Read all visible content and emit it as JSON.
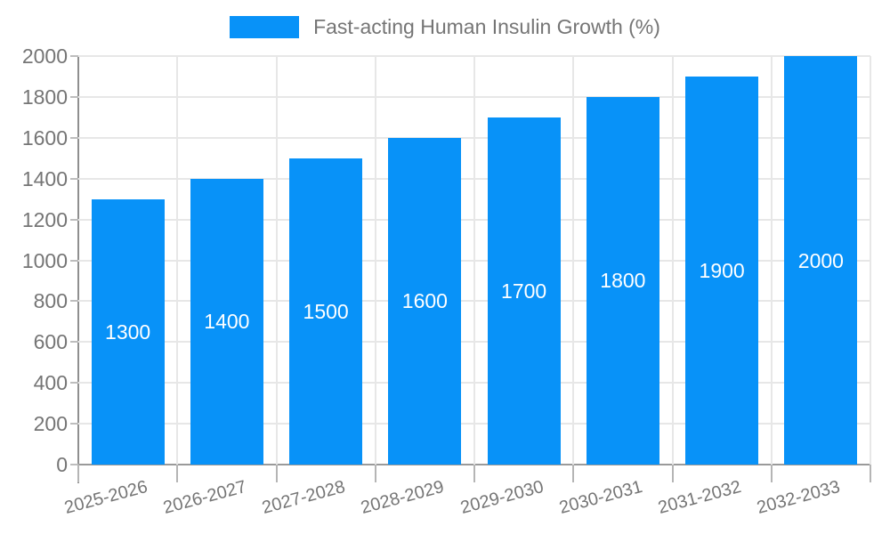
{
  "legend": {
    "position": "top-center",
    "items": [
      {
        "label": "Fast-acting Human Insulin Growth (%)",
        "color": "#0892f8"
      }
    ]
  },
  "chart_data": {
    "type": "bar",
    "title": "",
    "categories": [
      "2025-2026",
      "2026-2027",
      "2027-2028",
      "2028-2029",
      "2029-2030",
      "2030-2031",
      "2031-2032",
      "2032-2033"
    ],
    "series": [
      {
        "name": "Fast-acting Human Insulin Growth (%)",
        "values": [
          1300,
          1400,
          1500,
          1600,
          1700,
          1800,
          1900,
          2000
        ],
        "color": "#0892f8"
      }
    ],
    "value_labels": {
      "visible": true,
      "position": "middle-of-bar",
      "color": "#ffffff"
    },
    "xlabel": "",
    "ylabel": "",
    "ylim": [
      0,
      2000
    ],
    "yticks": [
      0,
      200,
      400,
      600,
      800,
      1000,
      1200,
      1400,
      1600,
      1800,
      2000
    ],
    "grid": true,
    "x_label_rotation_deg": -15,
    "legend_position": "top",
    "colors": {
      "bar": "#0892f8",
      "value_label_text": "#ffffff",
      "axis_text": "#757575",
      "grid_line": "#e7e7e7",
      "axis_line": "#8f8f8f",
      "background": "#ffffff"
    }
  }
}
